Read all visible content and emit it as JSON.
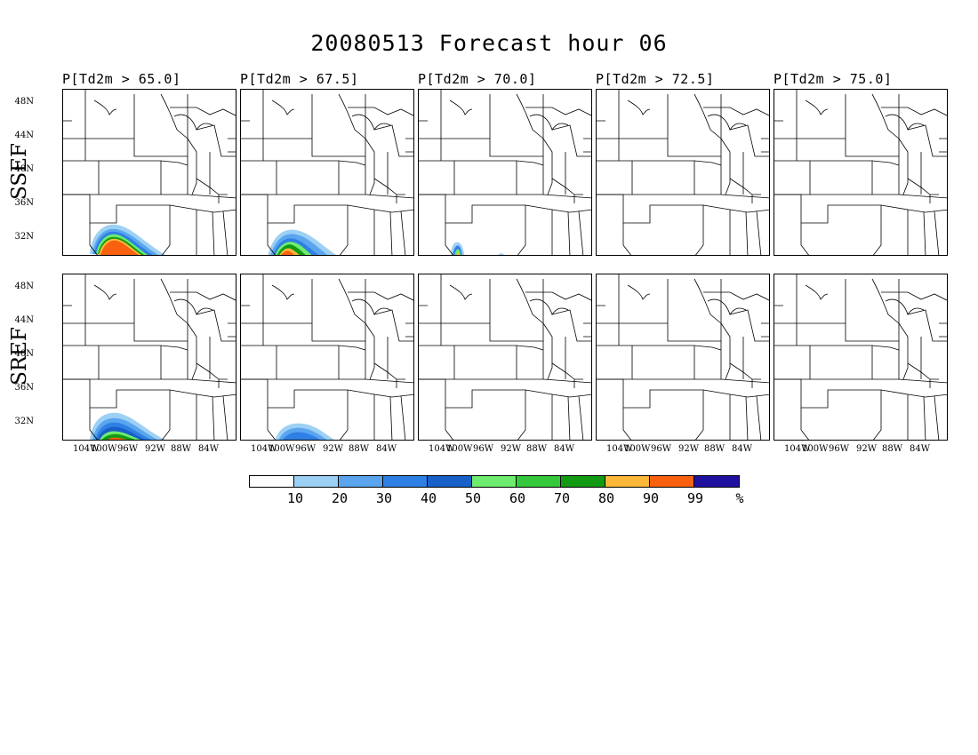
{
  "title": "20080513 Forecast hour 06",
  "columns": [
    "P[Td2m > 65.0]",
    "P[Td2m > 67.5]",
    "P[Td2m > 70.0]",
    "P[Td2m > 72.5]",
    "P[Td2m > 75.0]"
  ],
  "rows": [
    "SSEF",
    "SREF"
  ],
  "lat_labels": [
    "48N",
    "44N",
    "40N",
    "36N",
    "32N"
  ],
  "lon_labels": [
    "104W",
    "100W",
    "96W",
    "92W",
    "88W",
    "84W"
  ],
  "colorbar": {
    "colors": [
      "#ffffff",
      "#9dd0f5",
      "#5aa5ee",
      "#2f80e4",
      "#1860c8",
      "#6eec6e",
      "#36c83c",
      "#139a13",
      "#fbb838",
      "#f96010",
      "#2010a0"
    ],
    "labels": [
      "10",
      "20",
      "30",
      "40",
      "50",
      "60",
      "70",
      "80",
      "90",
      "99",
      "%"
    ]
  }
}
